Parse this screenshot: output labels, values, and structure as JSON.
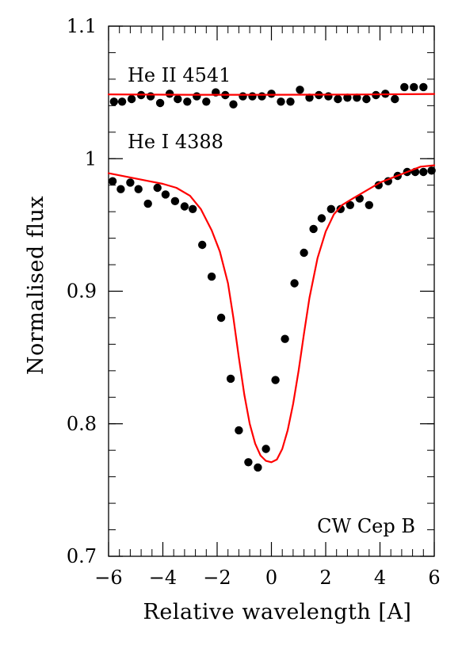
{
  "chart_data": {
    "type": "scatter",
    "title": "",
    "xlabel": "Relative wavelength [A]",
    "ylabel": "Normalised flux",
    "xlim": [
      -6,
      6
    ],
    "ylim": [
      0.7,
      1.1
    ],
    "x_major_ticks": [
      -6,
      -4,
      -2,
      0,
      2,
      4,
      6
    ],
    "x_tick_labels": [
      "−6",
      "−4",
      "−2",
      "0",
      "2",
      "4",
      "6"
    ],
    "y_major_ticks": [
      0.7,
      0.8,
      0.9,
      1.0,
      1.1
    ],
    "y_tick_labels": [
      "0.7",
      "0.8",
      "0.9",
      "1",
      "1.1"
    ],
    "x_minor_step": 0.4,
    "y_minor_step": 0.02,
    "grid": false,
    "legend": "none",
    "annotations": [
      {
        "text": "He II 4541",
        "x": -5.3,
        "y": 1.058
      },
      {
        "text": "He I 4388",
        "x": -5.3,
        "y": 1.008
      },
      {
        "text": "CW Cep B",
        "x": 5.3,
        "y": 0.718,
        "anchor": "end"
      }
    ],
    "colors": {
      "observed": "#000000",
      "model": "#ff0000"
    },
    "series": [
      {
        "label": "He II 4541",
        "kind": "points",
        "x": [
          -5.8,
          -5.5,
          -5.15,
          -4.8,
          -4.45,
          -4.1,
          -3.75,
          -3.45,
          -3.1,
          -2.75,
          -2.4,
          -2.05,
          -1.7,
          -1.4,
          -1.05,
          -0.7,
          -0.35,
          0.0,
          0.35,
          0.7,
          1.05,
          1.4,
          1.75,
          2.1,
          2.45,
          2.8,
          3.15,
          3.5,
          3.85,
          4.2,
          4.55,
          4.9,
          5.25,
          5.6
        ],
        "y": [
          1.043,
          1.043,
          1.045,
          1.048,
          1.047,
          1.042,
          1.049,
          1.045,
          1.043,
          1.047,
          1.043,
          1.05,
          1.048,
          1.041,
          1.047,
          1.047,
          1.047,
          1.049,
          1.043,
          1.043,
          1.052,
          1.046,
          1.048,
          1.047,
          1.045,
          1.046,
          1.046,
          1.045,
          1.048,
          1.049,
          1.045,
          1.054,
          1.054,
          1.054
        ]
      },
      {
        "label": "He II 4541 model",
        "kind": "line",
        "x": [
          -6.0,
          -3.0,
          0.0,
          3.0,
          6.0
        ],
        "y": [
          1.0485,
          1.0482,
          1.0482,
          1.0484,
          1.0488
        ]
      },
      {
        "label": "He I 4388",
        "kind": "points",
        "x": [
          -5.85,
          -5.55,
          -5.2,
          -4.9,
          -4.55,
          -4.2,
          -3.9,
          -3.55,
          -3.2,
          -2.9,
          -2.55,
          -2.2,
          -1.85,
          -1.5,
          -1.2,
          -0.85,
          -0.5,
          -0.2,
          0.15,
          0.5,
          0.85,
          1.2,
          1.55,
          1.85,
          2.2,
          2.55,
          2.9,
          3.25,
          3.6,
          3.95,
          4.3,
          4.65,
          5.0,
          5.3,
          5.6,
          5.9
        ],
        "y": [
          0.983,
          0.977,
          0.982,
          0.977,
          0.966,
          0.978,
          0.973,
          0.968,
          0.964,
          0.962,
          0.935,
          0.911,
          0.88,
          0.834,
          0.795,
          0.771,
          0.767,
          0.781,
          0.833,
          0.864,
          0.906,
          0.929,
          0.947,
          0.955,
          0.962,
          0.962,
          0.965,
          0.97,
          0.965,
          0.98,
          0.983,
          0.987,
          0.99,
          0.99,
          0.99,
          0.991
        ]
      },
      {
        "label": "He I 4388 model",
        "kind": "line",
        "x": [
          -6.0,
          -5.0,
          -4.5,
          -4.0,
          -3.5,
          -3.0,
          -2.6,
          -2.2,
          -1.9,
          -1.6,
          -1.4,
          -1.2,
          -1.0,
          -0.8,
          -0.6,
          -0.4,
          -0.2,
          0.0,
          0.2,
          0.4,
          0.6,
          0.8,
          1.0,
          1.2,
          1.4,
          1.7,
          2.0,
          2.3,
          2.6,
          3.0,
          3.5,
          4.0,
          4.5,
          5.0,
          5.5,
          6.0
        ],
        "y": [
          0.989,
          0.985,
          0.983,
          0.981,
          0.978,
          0.972,
          0.962,
          0.946,
          0.93,
          0.906,
          0.88,
          0.85,
          0.822,
          0.8,
          0.785,
          0.776,
          0.772,
          0.771,
          0.773,
          0.781,
          0.795,
          0.815,
          0.84,
          0.868,
          0.895,
          0.925,
          0.945,
          0.958,
          0.965,
          0.97,
          0.976,
          0.982,
          0.986,
          0.99,
          0.994,
          0.995
        ]
      }
    ]
  }
}
